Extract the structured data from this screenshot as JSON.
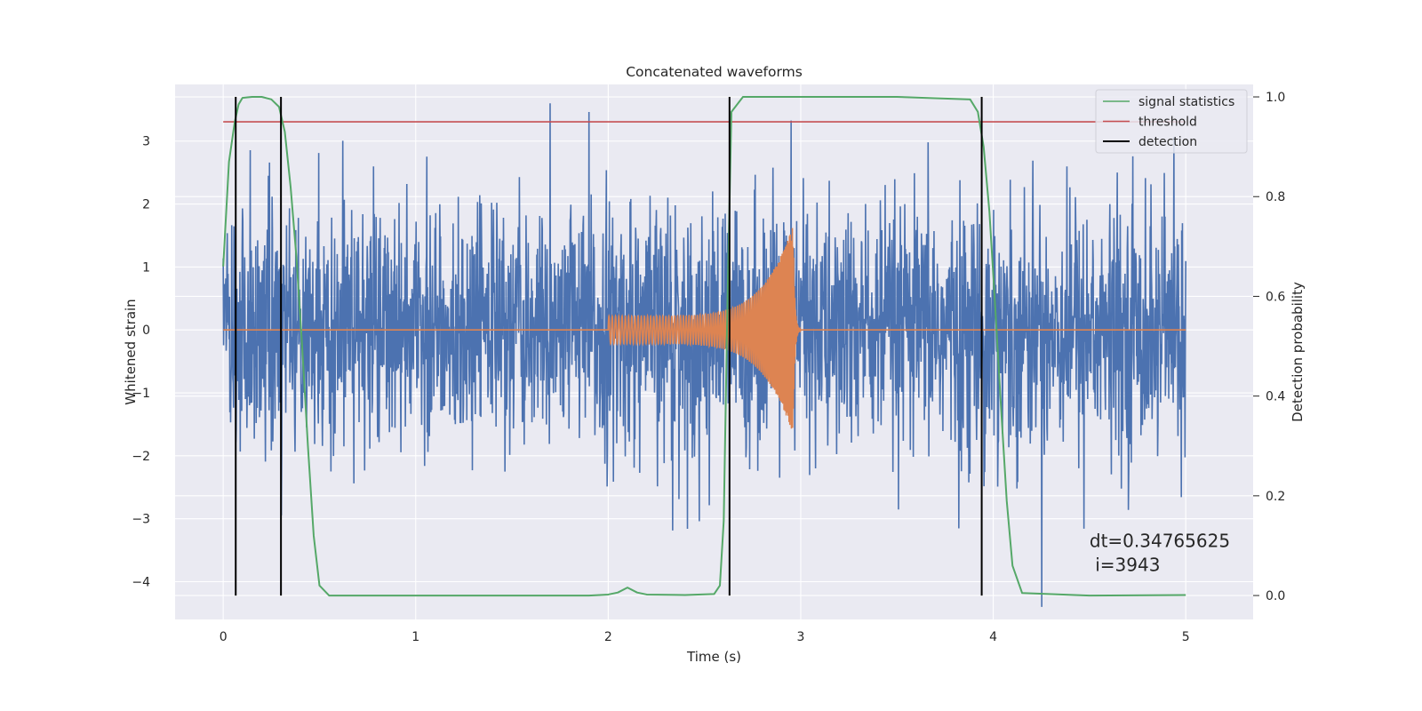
{
  "chart_data": {
    "type": "line",
    "title": "Concatenated waveforms",
    "xlabel": "Time (s)",
    "ylabel": "Whitened strain",
    "y2label": "Detection probability",
    "xlim": [
      -0.25,
      5.35
    ],
    "ylim": [
      -4.6,
      3.9
    ],
    "y2lim": [
      -0.048,
      1.025
    ],
    "xticks": [
      0,
      1,
      2,
      3,
      4,
      5
    ],
    "xtick_labels": [
      "0",
      "1",
      "2",
      "3",
      "4",
      "5"
    ],
    "yticks": [
      -4,
      -3,
      -2,
      -1,
      0,
      1,
      2,
      3
    ],
    "ytick_labels": [
      "−4",
      "−3",
      "−2",
      "−1",
      "0",
      "1",
      "2",
      "3"
    ],
    "y2ticks": [
      0.0,
      0.2,
      0.4,
      0.6,
      0.8,
      1.0
    ],
    "y2tick_labels": [
      "0.0",
      "0.2",
      "0.4",
      "0.6",
      "0.8",
      "1.0"
    ],
    "grid": true,
    "legend_position": "top-right",
    "colors": {
      "background": "#eaeaf2",
      "grid": "#ffffff",
      "strain": "#4c72b0",
      "injected": "#dd8452",
      "signal": "#55a868",
      "threshold": "#c44e52",
      "detection": "#000000"
    },
    "series": [
      {
        "name": "signal statistics",
        "axis": "right",
        "x": [
          0.0,
          0.03,
          0.06,
          0.08,
          0.1,
          0.15,
          0.2,
          0.25,
          0.29,
          0.32,
          0.35,
          0.38,
          0.41,
          0.44,
          0.47,
          0.5,
          0.55,
          1.0,
          1.5,
          1.9,
          2.0,
          2.05,
          2.1,
          2.15,
          2.2,
          2.4,
          2.55,
          2.58,
          2.6,
          2.62,
          2.64,
          2.7,
          3.0,
          3.5,
          3.88,
          3.92,
          3.95,
          3.98,
          4.01,
          4.04,
          4.07,
          4.1,
          4.15,
          4.5,
          5.0
        ],
        "values": [
          0.66,
          0.87,
          0.95,
          0.985,
          0.998,
          1.0,
          1.0,
          0.995,
          0.98,
          0.93,
          0.82,
          0.68,
          0.5,
          0.3,
          0.12,
          0.02,
          0.0,
          0.0,
          0.0,
          0.0,
          0.002,
          0.006,
          0.016,
          0.006,
          0.002,
          0.001,
          0.003,
          0.02,
          0.15,
          0.6,
          0.97,
          1.0,
          1.0,
          1.0,
          0.995,
          0.97,
          0.9,
          0.77,
          0.58,
          0.38,
          0.19,
          0.06,
          0.005,
          0.0,
          0.001
        ]
      },
      {
        "name": "threshold",
        "axis": "right",
        "x": [
          0,
          5
        ],
        "values": [
          0.95,
          0.95
        ]
      },
      {
        "name": "detection",
        "axis": "right",
        "x": [
          0.065,
          0.3,
          2.63,
          3.94
        ]
      }
    ],
    "strain_noise": {
      "axis": "left",
      "x_range": [
        0,
        5
      ],
      "y_range": [
        -4.4,
        3.6
      ],
      "typical_amplitude": 1.8
    },
    "injected_waveform": {
      "axis": "left",
      "x_range": [
        2.0,
        3.0
      ],
      "start_amplitude": 0.22,
      "peak_amplitude": 1.65,
      "peak_time": 2.96
    },
    "annotations": [
      {
        "text": "dt=0.34765625",
        "x": 4.5,
        "y": -3.45
      },
      {
        "text": " i=3943",
        "x": 4.5,
        "y": -3.83
      }
    ]
  }
}
